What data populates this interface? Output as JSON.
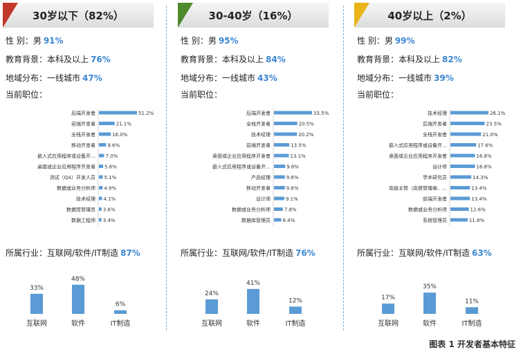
{
  "colors": {
    "bar": "#5b9bd5",
    "value": "#3a86d1"
  },
  "caption": "图表 1 开发者基本特征",
  "panels": [
    {
      "title": "30岁以下（82%）",
      "accent": "red",
      "gender_label": "性  别：男",
      "gender_value": "91%",
      "edu_label": "教育背景：本科及以上",
      "edu_value": "76%",
      "region_label": "地域分布：一线城市",
      "region_value": "47%",
      "position_label": "当前职位：",
      "industry_label": "所属行业：互联网/软件/IT制造",
      "industry_value": "87%"
    },
    {
      "title": "30-40岁（16%）",
      "accent": "green",
      "gender_label": "性  别：男",
      "gender_value": "95%",
      "edu_label": "教育背景：本科及以上",
      "edu_value": "84%",
      "region_label": "地域分布：一线城市",
      "region_value": "43%",
      "position_label": "当前职位：",
      "industry_label": "所属行业：互联网/软件/IT制造",
      "industry_value": "76%"
    },
    {
      "title": "40岁以上（2%）",
      "accent": "yellow",
      "gender_label": "性  别：男",
      "gender_value": "99%",
      "edu_label": "教育背景：本科及以上",
      "edu_value": "82%",
      "region_label": "地域分布：一线城市",
      "region_value": "39%",
      "position_label": "当前职位：",
      "industry_label": "所属行业：互联网/软件/IT制造",
      "industry_value": "63%"
    }
  ],
  "chart_data": [
    {
      "type": "bar",
      "orientation": "horizontal",
      "categories": [
        "后端开发者",
        "前端开发者",
        "全栈开发者",
        "移动开发者",
        "嵌入式应用程序或设备开…",
        "桌面或企业应用程序开发者",
        "测试（QA）开发人员",
        "数据或业务分析师",
        "技术经理",
        "数据库管理员",
        "数据工程师"
      ],
      "values": [
        51.2,
        21.1,
        16.0,
        9.6,
        7.0,
        5.6,
        5.1,
        4.9,
        4.1,
        3.6,
        3.4
      ],
      "labels": [
        "51.2%",
        "21.1%",
        "16.0%",
        "9.6%",
        "7.0%",
        "5.6%",
        "5.1%",
        "4.9%",
        "4.1%",
        "3.6%",
        "3.4%"
      ]
    },
    {
      "type": "bar",
      "orientation": "horizontal",
      "categories": [
        "后端开发者",
        "全栈开发者",
        "技术经理",
        "前端开发者",
        "桌面或企业应用程序开发者",
        "嵌入式应用程序或设备开…",
        "产品经理",
        "移动开发者",
        "设计师",
        "数据或业务分析师",
        "数据库管理员"
      ],
      "values": [
        33.5,
        20.5,
        20.2,
        13.5,
        13.1,
        9.8,
        9.6,
        9.6,
        9.1,
        7.8,
        6.4
      ],
      "labels": [
        "33.5%",
        "20.5%",
        "20.2%",
        "13.5%",
        "13.1%",
        "9.8%",
        "9.6%",
        "9.6%",
        "9.1%",
        "7.8%",
        "6.4%"
      ]
    },
    {
      "type": "bar",
      "orientation": "horizontal",
      "categories": [
        "技术经理",
        "后端开发者",
        "全栈开发者",
        "嵌入式应用程序或设备开…",
        "桌面或企业应用程序开发者",
        "设计师",
        "学术研究员",
        "高级主管（高层管理者、…",
        "前端开发者",
        "数据或业务分析师",
        "系统管理员"
      ],
      "values": [
        26.1,
        23.5,
        21.0,
        17.6,
        16.8,
        16.8,
        14.3,
        13.4,
        13.4,
        12.6,
        11.8
      ],
      "labels": [
        "26.1%",
        "23.5%",
        "21.0%",
        "17.6%",
        "16.8%",
        "16.8%",
        "14.3%",
        "13.4%",
        "13.4%",
        "12.6%",
        "11.8%"
      ]
    },
    {
      "type": "bar",
      "categories": [
        "互联网",
        "软件",
        "IT制造"
      ],
      "values": [
        33,
        48,
        6
      ],
      "labels": [
        "33%",
        "48%",
        "6%"
      ]
    },
    {
      "type": "bar",
      "categories": [
        "互联网",
        "软件",
        "IT制造"
      ],
      "values": [
        24,
        41,
        12
      ],
      "labels": [
        "24%",
        "41%",
        "12%"
      ]
    },
    {
      "type": "bar",
      "categories": [
        "互联网",
        "软件",
        "IT制造"
      ],
      "values": [
        17,
        35,
        11
      ],
      "labels": [
        "17%",
        "35%",
        "11%"
      ]
    }
  ]
}
